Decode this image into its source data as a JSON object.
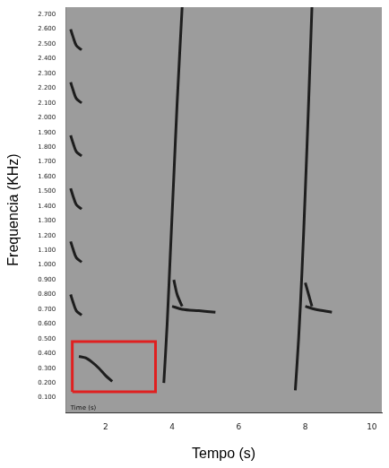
{
  "chart_data": {
    "type": "line",
    "xlabel": "Tempo (s)",
    "ylabel": "Frequencia (KHz)",
    "xlim": [
      0.8,
      10.3
    ],
    "xticks": [
      2,
      4,
      6,
      8,
      10
    ],
    "ylim": [
      0,
      2.75
    ],
    "yticks": [
      {
        "value": 0.1,
        "label": "0.100"
      },
      {
        "value": 0.2,
        "label": "0.200"
      },
      {
        "value": 0.3,
        "label": "0.300"
      },
      {
        "value": 0.4,
        "label": "0.400"
      },
      {
        "value": 0.5,
        "label": "0.500"
      },
      {
        "value": 0.6,
        "label": "0.600"
      },
      {
        "value": 0.7,
        "label": "0.700"
      },
      {
        "value": 0.8,
        "label": "0.800"
      },
      {
        "value": 0.9,
        "label": "0.900"
      },
      {
        "value": 1.0,
        "label": "1.000"
      },
      {
        "value": 1.1,
        "label": "1.100"
      },
      {
        "value": 1.2,
        "label": "1.200"
      },
      {
        "value": 1.3,
        "label": "1.300"
      },
      {
        "value": 1.4,
        "label": "1.400"
      },
      {
        "value": 1.5,
        "label": "1.500"
      },
      {
        "value": 1.6,
        "label": "1.600"
      },
      {
        "value": 1.7,
        "label": "1.700"
      },
      {
        "value": 1.8,
        "label": "1.800"
      },
      {
        "value": 1.9,
        "label": "1.900"
      },
      {
        "value": 2.0,
        "label": "2.000"
      },
      {
        "value": 2.1,
        "label": "2.100"
      },
      {
        "value": 2.2,
        "label": "2.200"
      },
      {
        "value": 2.3,
        "label": "2.300"
      },
      {
        "value": 2.4,
        "label": "2.400"
      },
      {
        "value": 2.5,
        "label": "2.500"
      },
      {
        "value": 2.6,
        "label": "2.600"
      },
      {
        "value": 2.7,
        "label": "2.700"
      }
    ],
    "grid": false,
    "series": [
      {
        "color": "#1e1e1e",
        "x": [
          1.2,
          1.4,
          1.6,
          1.8,
          2.0,
          2.2
        ],
        "values": [
          0.38,
          0.37,
          0.34,
          0.3,
          0.25,
          0.21
        ]
      },
      {
        "color": "#1e1e1e",
        "x": [
          0.95,
          1.02,
          1.12,
          1.28
        ],
        "values": [
          0.8,
          0.75,
          0.69,
          0.66
        ]
      },
      {
        "color": "#1e1e1e",
        "x": [
          0.95,
          1.02,
          1.12,
          1.28
        ],
        "values": [
          1.16,
          1.11,
          1.05,
          1.02
        ]
      },
      {
        "color": "#1e1e1e",
        "x": [
          0.95,
          1.02,
          1.12,
          1.28
        ],
        "values": [
          1.52,
          1.47,
          1.41,
          1.38
        ]
      },
      {
        "color": "#1e1e1e",
        "x": [
          0.95,
          1.02,
          1.12,
          1.28
        ],
        "values": [
          1.88,
          1.83,
          1.77,
          1.74
        ]
      },
      {
        "color": "#1e1e1e",
        "x": [
          0.95,
          1.02,
          1.12,
          1.28
        ],
        "values": [
          2.24,
          2.19,
          2.13,
          2.1
        ]
      },
      {
        "color": "#1e1e1e",
        "x": [
          0.95,
          1.02,
          1.12,
          1.28
        ],
        "values": [
          2.6,
          2.55,
          2.49,
          2.46
        ]
      },
      {
        "color": "#1e1e1e",
        "x": [
          3.75,
          3.85,
          3.95,
          4.05,
          4.15,
          4.3
        ],
        "values": [
          0.2,
          0.6,
          1.1,
          1.6,
          2.1,
          2.75
        ]
      },
      {
        "color": "#1e1e1e",
        "x": [
          4.0,
          4.3,
          4.8,
          5.3
        ],
        "values": [
          0.72,
          0.7,
          0.69,
          0.68
        ]
      },
      {
        "color": "#1e1e1e",
        "x": [
          4.05,
          4.15,
          4.3
        ],
        "values": [
          0.9,
          0.8,
          0.72
        ]
      },
      {
        "color": "#1e1e1e",
        "x": [
          7.7,
          7.8,
          7.9,
          8.0,
          8.1,
          8.2
        ],
        "values": [
          0.15,
          0.5,
          0.95,
          1.5,
          2.1,
          2.75
        ]
      },
      {
        "color": "#1e1e1e",
        "x": [
          8.0,
          8.3,
          8.8
        ],
        "values": [
          0.72,
          0.7,
          0.68
        ]
      },
      {
        "color": "#1e1e1e",
        "x": [
          8.0,
          8.1,
          8.2
        ],
        "values": [
          0.88,
          0.8,
          0.72
        ]
      }
    ],
    "highlight_box": {
      "color": "#e02020",
      "x": [
        1.0,
        3.5
      ],
      "y": [
        0.14,
        0.48
      ]
    },
    "annotations": [
      {
        "text": "Time (s)",
        "x": 0.95,
        "y": 0.03
      }
    ]
  }
}
